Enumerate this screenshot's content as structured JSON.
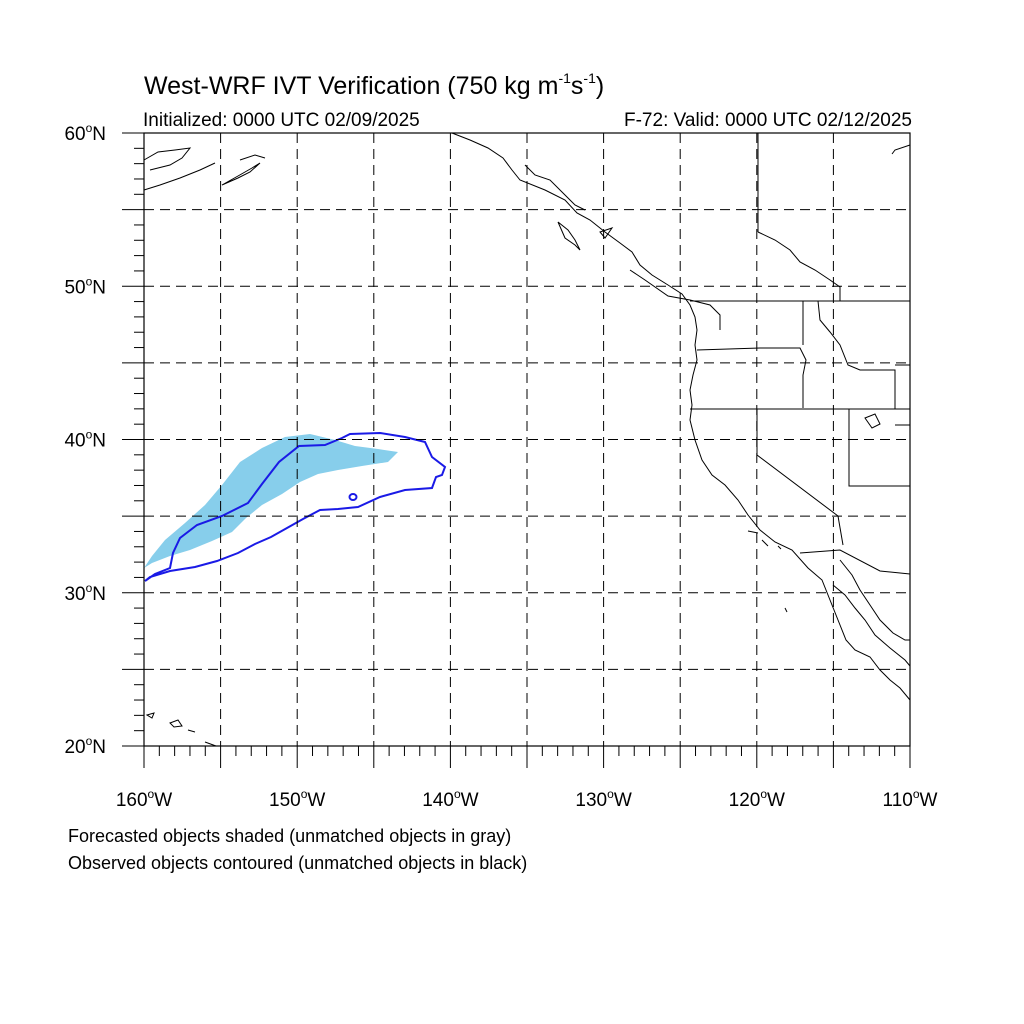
{
  "header": {
    "title_main": "West-WRF IVT Verification (750 kg m",
    "title_exp1": "-1",
    "title_mid": "s",
    "title_exp2": "-1",
    "title_end": ")",
    "initialized": "Initialized: 0000 UTC 02/09/2025",
    "valid": "F-72: Valid: 0000 UTC 02/12/2025"
  },
  "axes": {
    "lat_labels": [
      "60",
      "50",
      "40",
      "30",
      "20"
    ],
    "lat_suffix": "N",
    "lon_labels": [
      "160",
      "150",
      "140",
      "130",
      "120",
      "110"
    ],
    "lon_suffix": "W",
    "degree_symbol": "o",
    "lat_range": [
      20,
      60
    ],
    "lon_range": [
      -160,
      -110
    ],
    "grid": "dashed, every 5 degrees"
  },
  "colors": {
    "forecast_fill": "#87ceeb",
    "observed_contour": "#1a1ae6",
    "coastline": "#000000"
  },
  "legend": {
    "line1": "Forecasted objects shaded (unmatched objects in gray)",
    "line2": "Observed objects contoured (unmatched objects in black)"
  }
}
